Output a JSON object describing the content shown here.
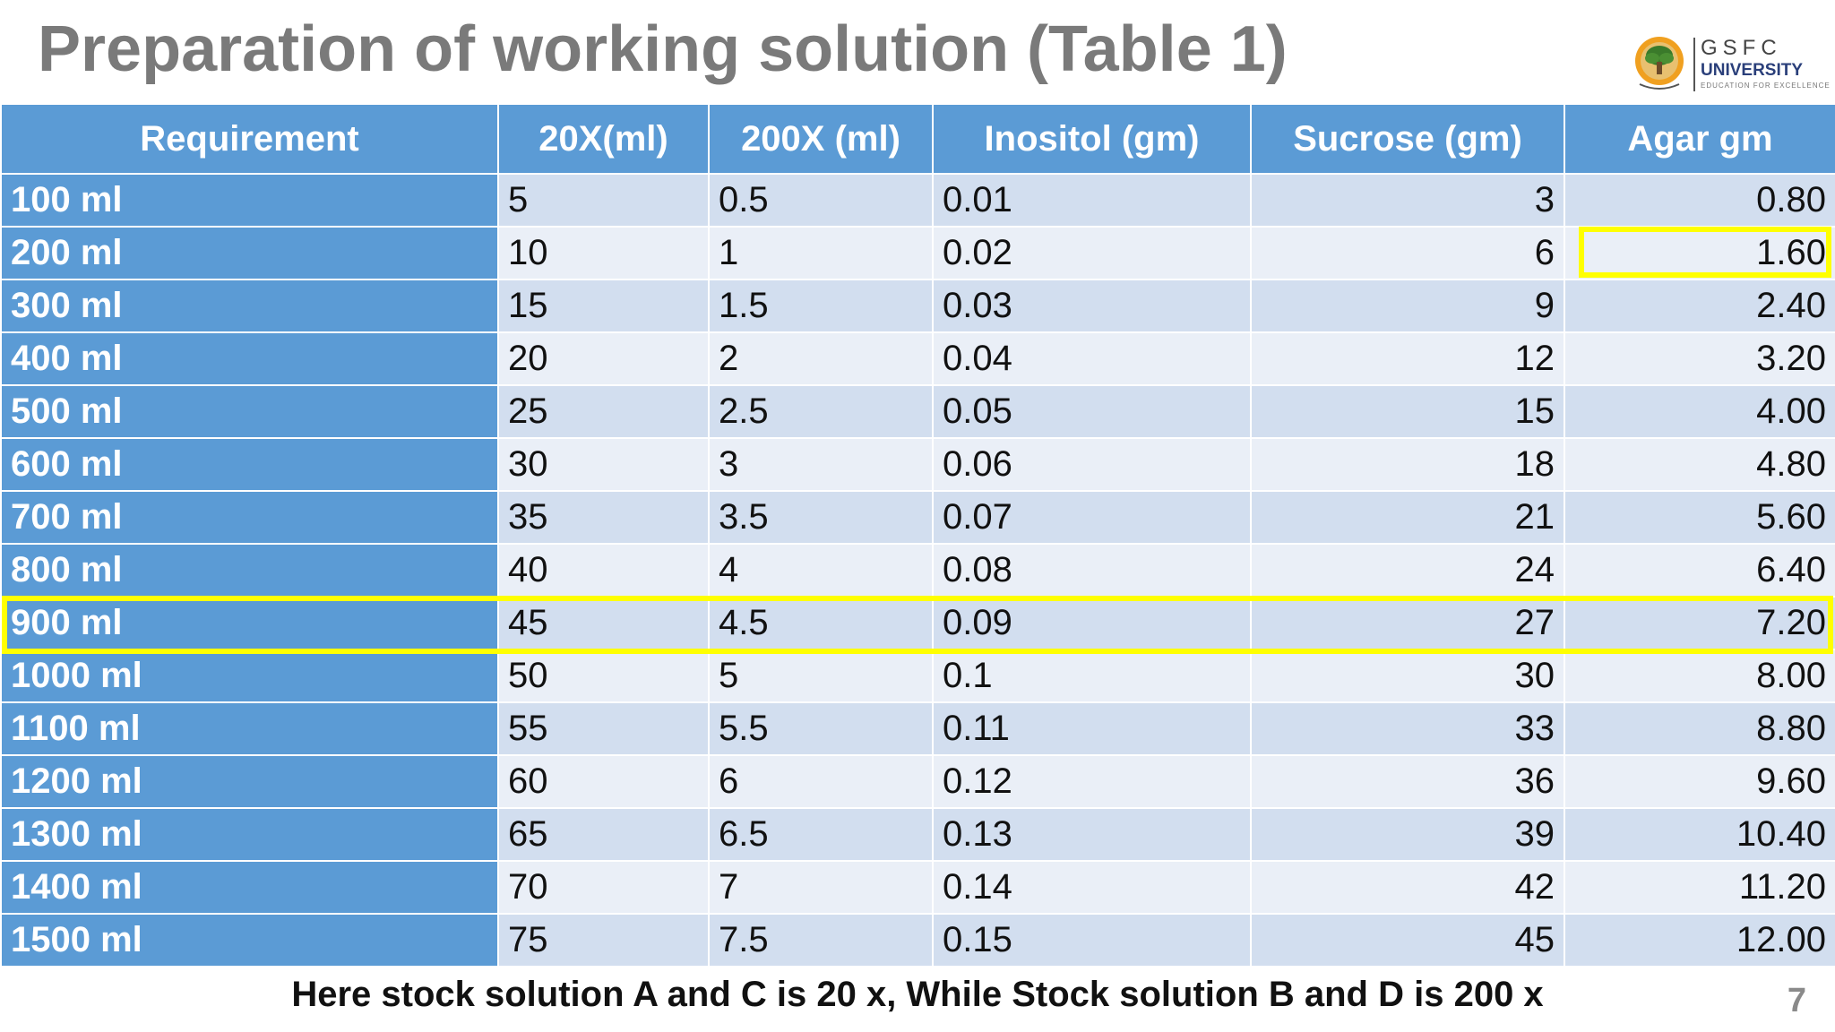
{
  "slide": {
    "title": "Preparation of working solution (Table 1)",
    "footnote": "Here stock solution A and C is 20 x, While Stock solution B and D is 200 x",
    "page_number": "7"
  },
  "logo": {
    "name": "GSFC",
    "subtitle": "UNIVERSITY",
    "tagline": "EDUCATION FOR EXCELLENCE"
  },
  "table": {
    "headers": [
      "Requirement",
      "20X(ml)",
      "200X (ml)",
      "Inositol (gm)",
      "Sucrose (gm)",
      "Agar gm"
    ],
    "rows": [
      [
        "100 ml",
        "5",
        "0.5",
        "0.01",
        "3",
        "0.80"
      ],
      [
        "200 ml",
        "10",
        "1",
        "0.02",
        "6",
        "1.60"
      ],
      [
        "300 ml",
        "15",
        "1.5",
        "0.03",
        "9",
        "2.40"
      ],
      [
        "400 ml",
        "20",
        "2",
        "0.04",
        "12",
        "3.20"
      ],
      [
        "500 ml",
        "25",
        "2.5",
        "0.05",
        "15",
        "4.00"
      ],
      [
        "600 ml",
        "30",
        "3",
        "0.06",
        "18",
        "4.80"
      ],
      [
        "700 ml",
        "35",
        "3.5",
        "0.07",
        "21",
        "5.60"
      ],
      [
        "800 ml",
        "40",
        "4",
        "0.08",
        "24",
        "6.40"
      ],
      [
        "900 ml",
        "45",
        "4.5",
        "0.09",
        "27",
        "7.20"
      ],
      [
        "1000 ml",
        "50",
        "5",
        "0.1",
        "30",
        "8.00"
      ],
      [
        "1100 ml",
        "55",
        "5.5",
        "0.11",
        "33",
        "8.80"
      ],
      [
        "1200 ml",
        "60",
        "6",
        "0.12",
        "36",
        "9.60"
      ],
      [
        "1300 ml",
        "65",
        "6.5",
        "0.13",
        "39",
        "10.40"
      ],
      [
        "1400 ml",
        "70",
        "7",
        "0.14",
        "42",
        "11.20"
      ],
      [
        "1500 ml",
        "75",
        "7.5",
        "0.15",
        "45",
        "12.00"
      ]
    ],
    "highlighted_row": "900 ml",
    "highlighted_cell": "1.60"
  },
  "colors": {
    "header_blue": "#5b9bd5",
    "band_dark": "#d2deef",
    "band_light": "#eaeff7",
    "highlight": "#ffff00",
    "title_gray": "#7a7a7a"
  }
}
